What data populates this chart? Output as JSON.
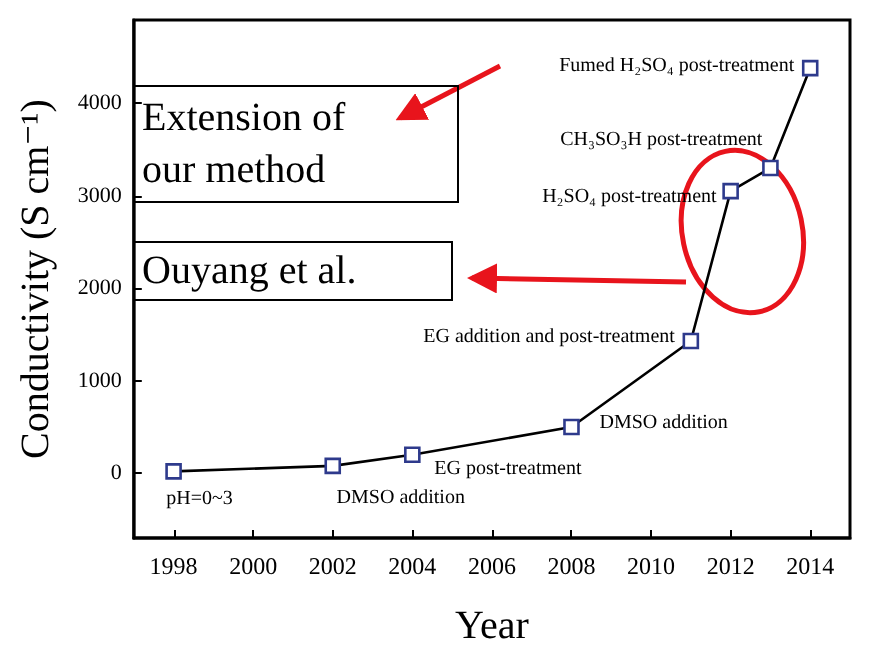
{
  "chart_data": {
    "type": "line",
    "xlabel": "Year",
    "ylabel": "Conductivity (S cm⁻¹)",
    "x": [
      1998,
      2002,
      2004,
      2008,
      2011,
      2012,
      2013,
      2014
    ],
    "series": [
      {
        "color": "#2e3a8c",
        "values": [
          20,
          80,
          200,
          500,
          1430,
          3050,
          3300,
          4380
        ]
      }
    ],
    "marker": "square",
    "line_style": "solid",
    "grid": false,
    "xlim": [
      1997,
      2015
    ],
    "xticks": [
      1998,
      2000,
      2002,
      2004,
      2006,
      2008,
      2010,
      2012,
      2014
    ],
    "ylim": [
      -700,
      4900
    ],
    "yticks": [
      0,
      1000,
      2000,
      3000,
      4000
    ],
    "annotations": [
      {
        "text": "pH=0~3",
        "x": 1998,
        "y": 20
      },
      {
        "text": "DMSO addition",
        "x": 2002,
        "y": 80
      },
      {
        "text": "EG post-treatment",
        "x": 2004,
        "y": 200
      },
      {
        "text": "DMSO addition",
        "x": 2008,
        "y": 500
      },
      {
        "text": "EG addition and post-treatment",
        "x": 2011,
        "y": 1430
      },
      {
        "text": "H₂SO₄ post-treatment",
        "x": 2012,
        "y": 3050
      },
      {
        "text": "CH₃SO₃H post-treatment",
        "x": 2013,
        "y": 3300
      },
      {
        "text": "Fumed H₂SO₄ post-treatment",
        "x": 2014,
        "y": 4380
      },
      "Extension of\nour method",
      "Ouyang et al."
    ]
  }
}
